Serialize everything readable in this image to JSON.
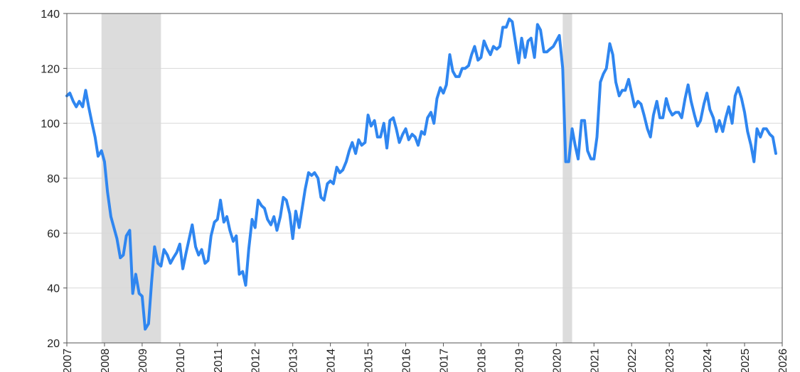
{
  "chart_data": {
    "type": "line",
    "title": "",
    "xlabel": "",
    "ylabel": "",
    "xlim": [
      2007.0,
      2026.0
    ],
    "ylim": [
      20,
      140
    ],
    "y_ticks": [
      20,
      40,
      60,
      80,
      100,
      120,
      140
    ],
    "y_tick_labels": [
      "20",
      "40",
      "60",
      "80",
      "100",
      "120",
      "140"
    ],
    "x_ticks": [
      2007,
      2008,
      2009,
      2010,
      2011,
      2012,
      2013,
      2014,
      2015,
      2016,
      2017,
      2018,
      2019,
      2020,
      2021,
      2022,
      2023,
      2024,
      2025,
      2026
    ],
    "x_tick_labels": [
      "2007",
      "2008",
      "2009",
      "2010",
      "2011",
      "2012",
      "2013",
      "2014",
      "2015",
      "2016",
      "2017",
      "2018",
      "2019",
      "2020",
      "2021",
      "2022",
      "2023",
      "2024",
      "2025",
      "2026"
    ],
    "grid": "horizontal",
    "legend": "none",
    "colors": {
      "line": "#2f86f0",
      "recession": "#dcdcdc",
      "grid": "#d8d8d8",
      "axis": "#555555"
    },
    "shaded_periods": [
      {
        "start": 2007.92,
        "end": 2009.5
      },
      {
        "start": 2020.17,
        "end": 2020.42
      }
    ],
    "series": [
      {
        "x": [
          2007.0,
          2007.08,
          2007.17,
          2007.25,
          2007.33,
          2007.42,
          2007.5,
          2007.58,
          2007.67,
          2007.75,
          2007.83,
          2007.92,
          2008.0,
          2008.08,
          2008.17,
          2008.25,
          2008.33,
          2008.42,
          2008.5,
          2008.58,
          2008.67,
          2008.75,
          2008.83,
          2008.92,
          2009.0,
          2009.08,
          2009.17,
          2009.25,
          2009.33,
          2009.42,
          2009.5,
          2009.58,
          2009.67,
          2009.75,
          2009.83,
          2009.92,
          2010.0,
          2010.08,
          2010.17,
          2010.25,
          2010.33,
          2010.42,
          2010.5,
          2010.58,
          2010.67,
          2010.75,
          2010.83,
          2010.92,
          2011.0,
          2011.08,
          2011.17,
          2011.25,
          2011.33,
          2011.42,
          2011.5,
          2011.58,
          2011.67,
          2011.75,
          2011.83,
          2011.92,
          2012.0,
          2012.08,
          2012.17,
          2012.25,
          2012.33,
          2012.42,
          2012.5,
          2012.58,
          2012.67,
          2012.75,
          2012.83,
          2012.92,
          2013.0,
          2013.08,
          2013.17,
          2013.25,
          2013.33,
          2013.42,
          2013.5,
          2013.58,
          2013.67,
          2013.75,
          2013.83,
          2013.92,
          2014.0,
          2014.08,
          2014.17,
          2014.25,
          2014.33,
          2014.42,
          2014.5,
          2014.58,
          2014.67,
          2014.75,
          2014.83,
          2014.92,
          2015.0,
          2015.08,
          2015.17,
          2015.25,
          2015.33,
          2015.42,
          2015.5,
          2015.58,
          2015.67,
          2015.75,
          2015.83,
          2015.92,
          2016.0,
          2016.08,
          2016.17,
          2016.25,
          2016.33,
          2016.42,
          2016.5,
          2016.58,
          2016.67,
          2016.75,
          2016.83,
          2016.92,
          2017.0,
          2017.08,
          2017.17,
          2017.25,
          2017.33,
          2017.42,
          2017.5,
          2017.58,
          2017.67,
          2017.75,
          2017.83,
          2017.92,
          2018.0,
          2018.08,
          2018.17,
          2018.25,
          2018.33,
          2018.42,
          2018.5,
          2018.58,
          2018.67,
          2018.75,
          2018.83,
          2018.92,
          2019.0,
          2019.08,
          2019.17,
          2019.25,
          2019.33,
          2019.42,
          2019.5,
          2019.58,
          2019.67,
          2019.75,
          2019.83,
          2019.92,
          2020.0,
          2020.08,
          2020.17,
          2020.25,
          2020.33,
          2020.42,
          2020.5,
          2020.58,
          2020.67,
          2020.75,
          2020.83,
          2020.92,
          2021.0,
          2021.08,
          2021.17,
          2021.25,
          2021.33,
          2021.42,
          2021.5,
          2021.58,
          2021.67,
          2021.75,
          2021.83,
          2021.92,
          2022.0,
          2022.08,
          2022.17,
          2022.25,
          2022.33,
          2022.42,
          2022.5,
          2022.58,
          2022.67,
          2022.75,
          2022.83,
          2022.92,
          2023.0,
          2023.08,
          2023.17,
          2023.25,
          2023.33,
          2023.42,
          2023.5,
          2023.58,
          2023.67,
          2023.75,
          2023.83,
          2023.92,
          2024.0,
          2024.08,
          2024.17,
          2024.25,
          2024.33,
          2024.42,
          2024.5,
          2024.58,
          2024.67,
          2024.75,
          2024.83,
          2024.92,
          2025.0,
          2025.08,
          2025.17,
          2025.25,
          2025.33,
          2025.42,
          2025.5,
          2025.58,
          2025.67,
          2025.75,
          2025.83
        ],
        "values": [
          110,
          111,
          108,
          106,
          108,
          106,
          112,
          106,
          100,
          95,
          88,
          90,
          86,
          75,
          66,
          62,
          58,
          51,
          52,
          59,
          61,
          38,
          45,
          38,
          37,
          25,
          27,
          42,
          55,
          49,
          48,
          54,
          52,
          49,
          51,
          53,
          56,
          47,
          53,
          58,
          63,
          55,
          52,
          54,
          49,
          50,
          59,
          64,
          65,
          72,
          64,
          66,
          61,
          57,
          59,
          45,
          46,
          41,
          54,
          65,
          62,
          72,
          70,
          69,
          65,
          63,
          66,
          61,
          66,
          73,
          72,
          67,
          58,
          68,
          62,
          69,
          76,
          82,
          81,
          82,
          80,
          73,
          72,
          78,
          79,
          78,
          84,
          82,
          83,
          86,
          90,
          93,
          89,
          94,
          92,
          93,
          103,
          99,
          101,
          95,
          95,
          100,
          91,
          101,
          102,
          98,
          93,
          96,
          98,
          94,
          96,
          95,
          92,
          97,
          96,
          102,
          104,
          100,
          109,
          113,
          111,
          114,
          125,
          119,
          117,
          117,
          120,
          120,
          121,
          125,
          128,
          123,
          124,
          130,
          127,
          125,
          128,
          127,
          128,
          135,
          135,
          138,
          137,
          129,
          122,
          131,
          124,
          130,
          131,
          124,
          136,
          134,
          126,
          126,
          127,
          128,
          130,
          132,
          120,
          86,
          86,
          98,
          92,
          87,
          101,
          101,
          90,
          87,
          87,
          95,
          115,
          118,
          120,
          129,
          125,
          115,
          110,
          112,
          112,
          116,
          111,
          106,
          108,
          107,
          103,
          98,
          95,
          103,
          108,
          102,
          102,
          109,
          105,
          103,
          104,
          104,
          102,
          109,
          114,
          108,
          103,
          99,
          101,
          107,
          111,
          105,
          102,
          97,
          101,
          97,
          102,
          106,
          100,
          110,
          113,
          109,
          104,
          97,
          92,
          86,
          98,
          95,
          98,
          98,
          96,
          95,
          89
        ]
      }
    ]
  }
}
